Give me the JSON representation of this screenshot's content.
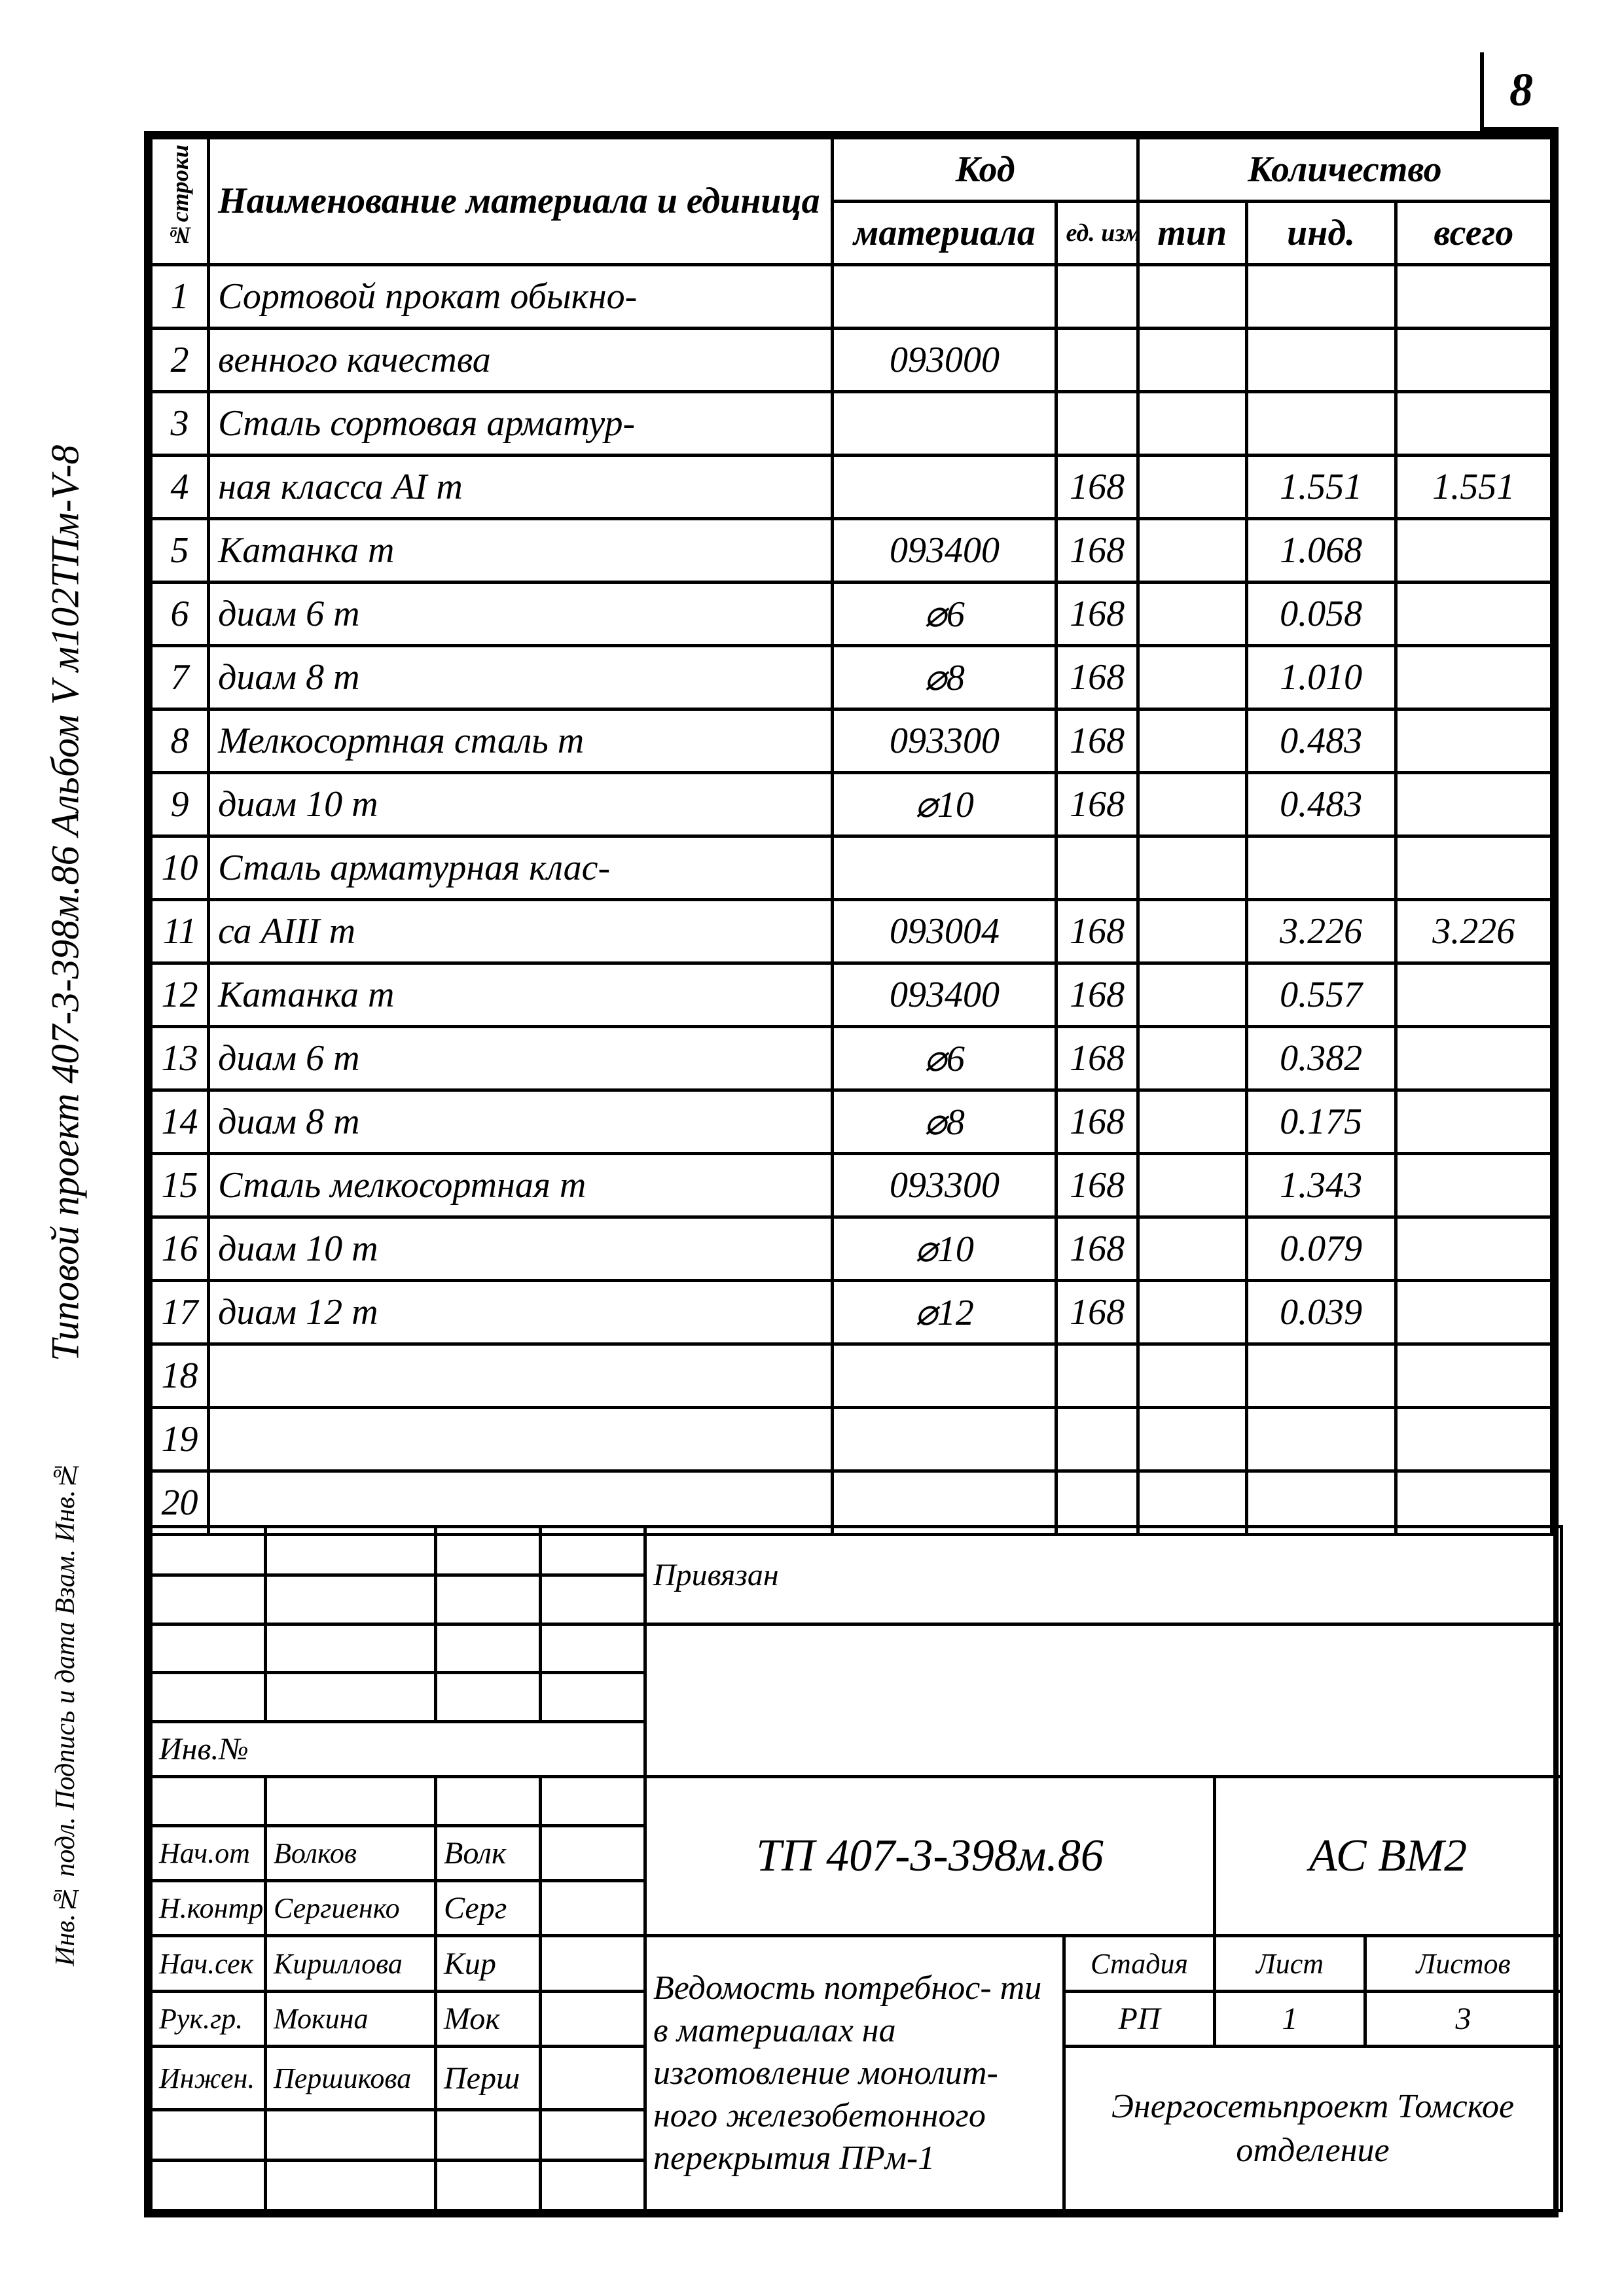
{
  "page_number": "8",
  "side_text_main": "Типовой  проект 407-3-398м.86 Альбом V м102ТПм-V-8",
  "side_text_stamp": "Инв.№ подл. Подпись и дата Взам. Инв.№",
  "table": {
    "head_n": "№строки",
    "head_name": "Наименование материала и единица измерения",
    "head_code_group": "Код",
    "head_code_mat": "материала",
    "head_code_ed": "ед. изм",
    "head_qty_group": "Количество",
    "head_tun": "тип",
    "head_ind": "инд.",
    "head_total": "всего",
    "rows": [
      {
        "n": "1",
        "name": "Сортовой прокат обыкно-",
        "code": "",
        "ed": "",
        "tun": "",
        "ind": "",
        "tot": ""
      },
      {
        "n": "2",
        "name": "венного качества",
        "code": "093000",
        "ed": "",
        "tun": "",
        "ind": "",
        "tot": ""
      },
      {
        "n": "3",
        "name": "Сталь сортовая арматур-",
        "code": "",
        "ed": "",
        "tun": "",
        "ind": "",
        "tot": ""
      },
      {
        "n": "4",
        "name": "ная класса  AI                         т",
        "code": "",
        "ed": "168",
        "tun": "",
        "ind": "1.551",
        "tot": "1.551"
      },
      {
        "n": "5",
        "name": "Катанка                                   т",
        "code": "093400",
        "ed": "168",
        "tun": "",
        "ind": "1.068",
        "tot": ""
      },
      {
        "n": "6",
        "name": "   диам 6                                    т",
        "code": "⌀6",
        "ed": "168",
        "tun": "",
        "ind": "0.058",
        "tot": ""
      },
      {
        "n": "7",
        "name": "   диам 8                                    т",
        "code": "⌀8",
        "ed": "168",
        "tun": "",
        "ind": "1.010",
        "tot": ""
      },
      {
        "n": "8",
        "name": "Мелкосортная сталь          т",
        "code": "093300",
        "ed": "168",
        "tun": "",
        "ind": "0.483",
        "tot": ""
      },
      {
        "n": "9",
        "name": "   диам 10                                   т",
        "code": "⌀10",
        "ed": "168",
        "tun": "",
        "ind": "0.483",
        "tot": ""
      },
      {
        "n": "10",
        "name": "Сталь арматурная  клас-",
        "code": "",
        "ed": "",
        "tun": "",
        "ind": "",
        "tot": ""
      },
      {
        "n": "11",
        "name": "са AIII                                        т",
        "code": "093004",
        "ed": "168",
        "tun": "",
        "ind": "3.226",
        "tot": "3.226"
      },
      {
        "n": "12",
        "name": "Катанка                                   т",
        "code": "093400",
        "ed": "168",
        "tun": "",
        "ind": "0.557",
        "tot": ""
      },
      {
        "n": "13",
        "name": "   диам 6                                   т",
        "code": "⌀6",
        "ed": "168",
        "tun": "",
        "ind": "0.382",
        "tot": ""
      },
      {
        "n": "14",
        "name": "   диам 8                                   т",
        "code": "⌀8",
        "ed": "168",
        "tun": "",
        "ind": "0.175",
        "tot": ""
      },
      {
        "n": "15",
        "name": "Сталь мелкосортная        т",
        "code": "093300",
        "ed": "168",
        "tun": "",
        "ind": "1.343",
        "tot": ""
      },
      {
        "n": "16",
        "name": "   диам 10                                  т",
        "code": "⌀10",
        "ed": "168",
        "tun": "",
        "ind": "0.079",
        "tot": ""
      },
      {
        "n": "17",
        "name": "   диам 12                                  т",
        "code": "⌀12",
        "ed": "168",
        "tun": "",
        "ind": "0.039",
        "tot": ""
      },
      {
        "n": "18",
        "name": "",
        "code": "",
        "ed": "",
        "tun": "",
        "ind": "",
        "tot": ""
      },
      {
        "n": "19",
        "name": "",
        "code": "",
        "ed": "",
        "tun": "",
        "ind": "",
        "tot": ""
      },
      {
        "n": "20",
        "name": "",
        "code": "",
        "ed": "",
        "tun": "",
        "ind": "",
        "tot": ""
      }
    ]
  },
  "titleblock": {
    "priv": "Привязан",
    "inv": "Инв.№",
    "roles": [
      {
        "role": "Нач.от",
        "name": "Волков",
        "sig": "Волк"
      },
      {
        "role": "Н.контр",
        "name": "Сергиенко",
        "sig": "Серг"
      },
      {
        "role": "Нач.сек",
        "name": "Кириллова",
        "sig": "Кир"
      },
      {
        "role": "Рук.гр.",
        "name": "Мокина",
        "sig": "Мок"
      },
      {
        "role": "Инжен.",
        "name": "Першикова",
        "sig": "Перш"
      }
    ],
    "proj_code": "ТП 407-3-398м.86",
    "proj_mark": "АС ВМ2",
    "doc_title": "Ведомость потребнос- ти в материалах на изготовление монолит- ного железобетонного перекрытия ПРм-1",
    "stadia_h": "Стадия",
    "list_h": "Лист",
    "listov_h": "Листов",
    "stadia": "РП",
    "list": "1",
    "listov": "3",
    "org": "Энергосетьпроект Томское отделение"
  }
}
